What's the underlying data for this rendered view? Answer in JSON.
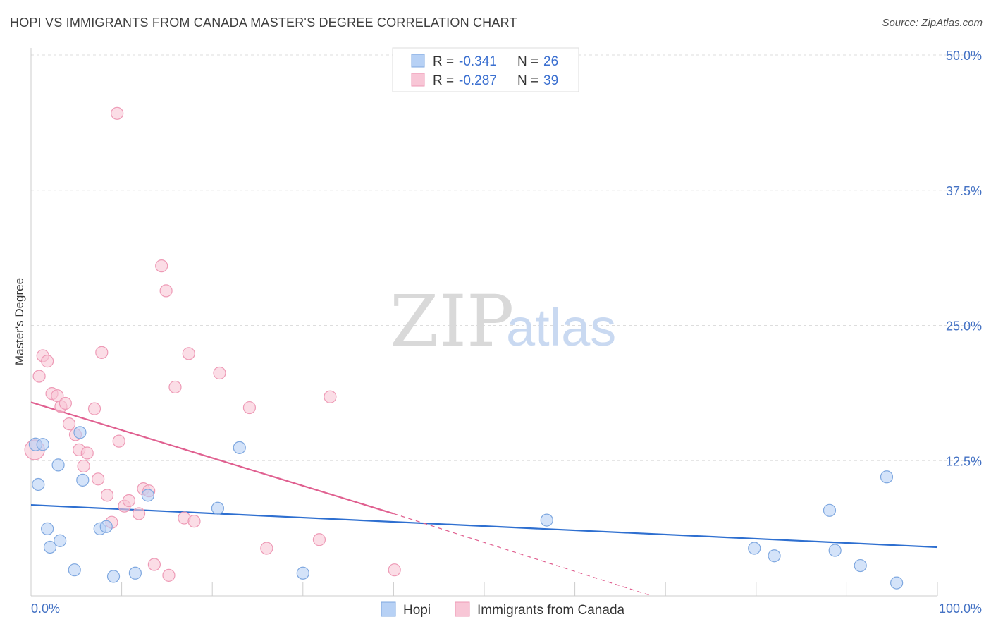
{
  "title": "HOPI VS IMMIGRANTS FROM CANADA MASTER'S DEGREE CORRELATION CHART",
  "source": "Source: ZipAtlas.com",
  "watermark": {
    "zip": "ZIP",
    "atlas": "atlas"
  },
  "colors": {
    "hopi_fill": "#b7d1f5",
    "hopi_stroke": "#7fa8e0",
    "hopi_line": "#2e6fd0",
    "canada_fill": "#f8c6d6",
    "canada_stroke": "#ee9ab6",
    "canada_line": "#e06090",
    "grid": "#dddddd"
  },
  "legend": {
    "rows": [
      {
        "r_label": "R =",
        "r_value": "-0.341",
        "n_label": "N =",
        "n_value": "26"
      },
      {
        "r_label": "R =",
        "r_value": "-0.287",
        "n_label": "N =",
        "n_value": "39"
      }
    ]
  },
  "bottom_legend": [
    "Hopi",
    "Immigrants from Canada"
  ],
  "chart_data": {
    "type": "scatter",
    "ylabel": "Master's Degree",
    "xlim": [
      0,
      100
    ],
    "ylim": [
      0,
      50
    ],
    "x_tick_labels": [
      "0.0%",
      "100.0%"
    ],
    "y_ticks": [
      12.5,
      25.0,
      37.5,
      50.0
    ],
    "y_tick_labels": [
      "12.5%",
      "25.0%",
      "37.5%",
      "50.0%"
    ],
    "grid": true,
    "legend_position": "top-center",
    "series": [
      {
        "name": "Hopi",
        "points": [
          [
            0.5,
            14.0
          ],
          [
            1.3,
            14.0
          ],
          [
            0.8,
            10.3
          ],
          [
            1.8,
            6.2
          ],
          [
            2.1,
            4.5
          ],
          [
            3.2,
            5.1
          ],
          [
            3.0,
            12.1
          ],
          [
            4.8,
            2.4
          ],
          [
            5.4,
            15.1
          ],
          [
            5.7,
            10.7
          ],
          [
            7.6,
            6.2
          ],
          [
            8.3,
            6.4
          ],
          [
            9.1,
            1.8
          ],
          [
            11.5,
            2.1
          ],
          [
            12.9,
            9.3
          ],
          [
            20.6,
            8.1
          ],
          [
            23.0,
            13.7
          ],
          [
            30.0,
            2.1
          ],
          [
            56.9,
            7.0
          ],
          [
            79.8,
            4.4
          ],
          [
            82.0,
            3.7
          ],
          [
            88.1,
            7.9
          ],
          [
            88.7,
            4.2
          ],
          [
            91.5,
            2.8
          ],
          [
            94.4,
            11.0
          ],
          [
            95.5,
            1.2
          ]
        ],
        "trend": {
          "x": [
            0,
            100
          ],
          "y": [
            8.4,
            4.5
          ]
        }
      },
      {
        "name": "Immigrants from Canada",
        "points": [
          [
            0.4,
            13.5
          ],
          [
            0.9,
            20.3
          ],
          [
            1.3,
            22.2
          ],
          [
            1.8,
            21.7
          ],
          [
            2.3,
            18.7
          ],
          [
            2.9,
            18.5
          ],
          [
            3.3,
            17.5
          ],
          [
            3.8,
            17.8
          ],
          [
            4.2,
            15.9
          ],
          [
            4.9,
            14.9
          ],
          [
            5.3,
            13.5
          ],
          [
            5.8,
            12.0
          ],
          [
            6.2,
            13.2
          ],
          [
            7.0,
            17.3
          ],
          [
            7.4,
            10.8
          ],
          [
            7.8,
            22.5
          ],
          [
            8.4,
            9.3
          ],
          [
            8.9,
            6.8
          ],
          [
            9.5,
            44.6
          ],
          [
            9.7,
            14.3
          ],
          [
            10.3,
            8.3
          ],
          [
            10.8,
            8.8
          ],
          [
            11.9,
            7.6
          ],
          [
            12.4,
            9.9
          ],
          [
            13.0,
            9.7
          ],
          [
            13.6,
            2.9
          ],
          [
            14.4,
            30.5
          ],
          [
            14.9,
            28.2
          ],
          [
            15.2,
            1.9
          ],
          [
            15.9,
            19.3
          ],
          [
            16.9,
            7.2
          ],
          [
            17.4,
            22.4
          ],
          [
            18.0,
            6.9
          ],
          [
            20.8,
            20.6
          ],
          [
            24.1,
            17.4
          ],
          [
            26.0,
            4.4
          ],
          [
            31.8,
            5.2
          ],
          [
            33.0,
            18.4
          ],
          [
            40.1,
            2.4
          ]
        ],
        "trend": {
          "x": [
            0,
            40
          ],
          "y": [
            17.9,
            7.6
          ]
        },
        "trend_extension": {
          "x": [
            40,
            68.5
          ],
          "y": [
            7.6,
            0.0
          ]
        }
      }
    ]
  }
}
